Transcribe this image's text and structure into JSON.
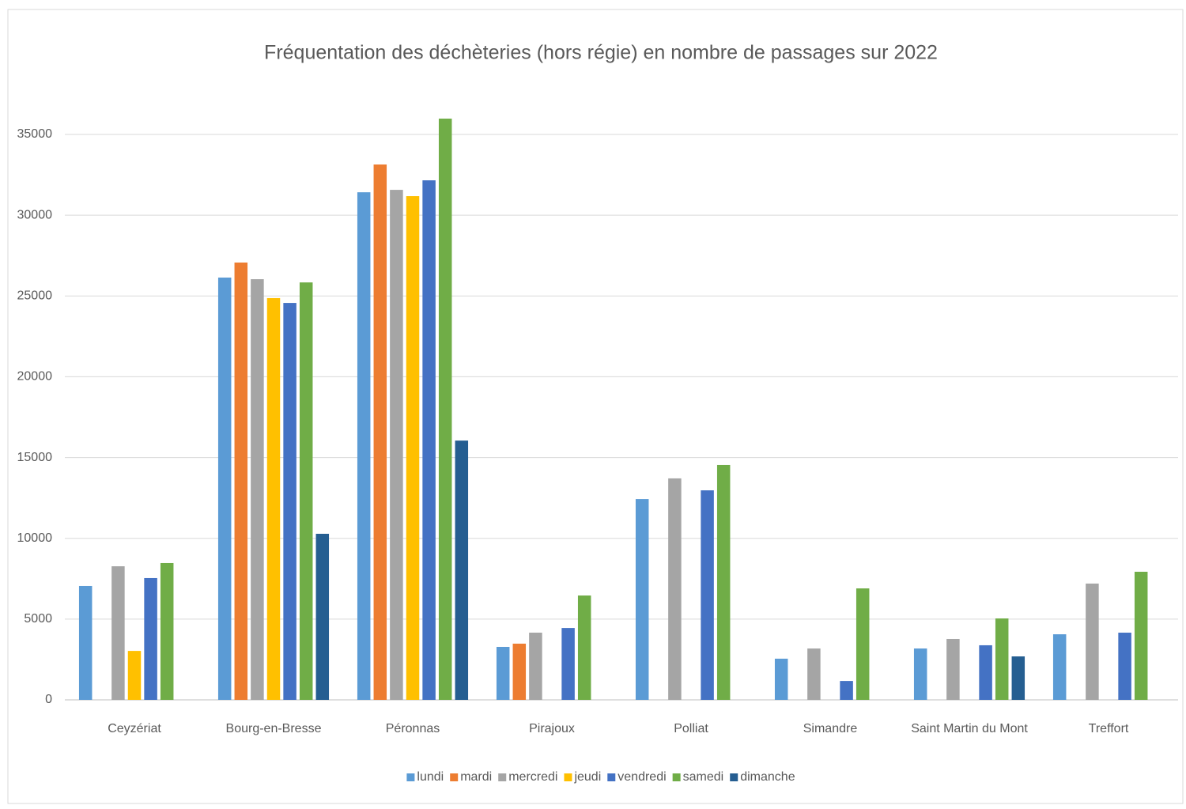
{
  "chart_data": {
    "type": "bar",
    "title": "Fréquentation des déchèteries (hors régie) en nombre de passages sur 2022",
    "categories": [
      "Ceyzériat",
      "Bourg-en-Bresse",
      "Péronnas",
      "Pirajoux",
      "Polliat",
      "Simandre",
      "Saint Martin du Mont",
      "Treffort"
    ],
    "series": [
      {
        "name": "lundi",
        "color": "#5b9bd5",
        "values": [
          7050,
          26140,
          31420,
          3280,
          12430,
          2550,
          3180,
          4060
        ]
      },
      {
        "name": "mardi",
        "color": "#ed7d31",
        "values": [
          null,
          27070,
          33140,
          3480,
          null,
          null,
          null,
          null
        ]
      },
      {
        "name": "mercredi",
        "color": "#a5a5a5",
        "values": [
          8270,
          26040,
          31570,
          4160,
          13710,
          3180,
          3770,
          7200
        ]
      },
      {
        "name": "jeudi",
        "color": "#ffc000",
        "values": [
          3030,
          24870,
          31180,
          null,
          null,
          null,
          null,
          null
        ]
      },
      {
        "name": "vendredi",
        "color": "#4472c4",
        "values": [
          7540,
          24570,
          32160,
          4450,
          12970,
          1170,
          3380,
          4160
        ]
      },
      {
        "name": "samedi",
        "color": "#70ad47",
        "values": [
          8470,
          25840,
          35980,
          6460,
          14540,
          6900,
          5040,
          7930
        ]
      },
      {
        "name": "dimanche",
        "color": "#255e91",
        "values": [
          null,
          10280,
          16050,
          null,
          null,
          null,
          2690,
          null
        ]
      }
    ],
    "ylim": [
      0,
      37000
    ],
    "yticks": [
      0,
      5000,
      10000,
      15000,
      20000,
      25000,
      30000,
      35000
    ],
    "grid": true,
    "legend": "bottom"
  }
}
